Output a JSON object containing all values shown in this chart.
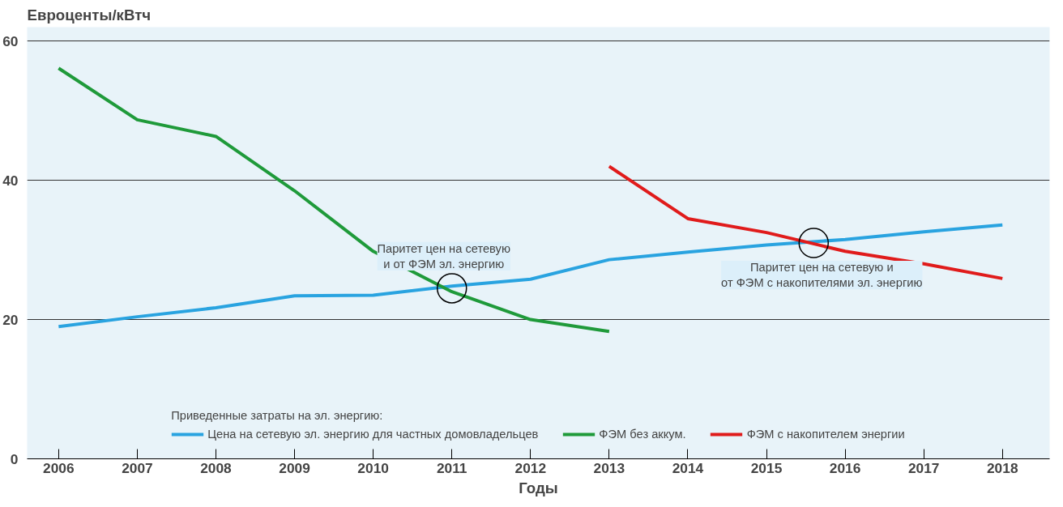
{
  "chart_data": {
    "type": "line",
    "ylabel": "Евроценты/кВтч",
    "xlabel": "Годы",
    "x": [
      2006,
      2007,
      2008,
      2009,
      2010,
      2011,
      2012,
      2013,
      2014,
      2015,
      2016,
      2017,
      2018
    ],
    "series": [
      {
        "name": "Цена на сетевую эл. энергию для частных домовладельцев",
        "color": "#29a3e0",
        "values": [
          19,
          20.4,
          21.7,
          23.4,
          23.5,
          24.8,
          25.8,
          28.6,
          29.7,
          30.7,
          31.5,
          32.6,
          33.6
        ]
      },
      {
        "name": "ФЭМ без аккум.",
        "color": "#1f9a3a",
        "values": [
          56.1,
          48.7,
          46.3,
          38.5,
          29.8,
          24,
          20,
          18.3,
          null,
          null,
          null,
          null,
          null
        ]
      },
      {
        "name": "ФЭМ с накопителем энергии",
        "color": "#e01b1b",
        "values": [
          null,
          null,
          null,
          null,
          null,
          null,
          null,
          42,
          34.5,
          32.5,
          29.8,
          28,
          25.9
        ]
      }
    ],
    "legend_title": "Приведенные затраты на эл. энергию:",
    "annotations": [
      {
        "text": "Паритет цен на сетевую и от ФЭМ эл. энергию",
        "x": 2011,
        "y": 24.5
      },
      {
        "text": "Паритет цен на сетевую и от ФЭМ с накопителями эл. энергию",
        "x": 2015.6,
        "y": 31
      }
    ],
    "xlim": [
      2005.6,
      2018.6
    ],
    "ylim": [
      0,
      62
    ],
    "xticks": [
      2006,
      2007,
      2008,
      2009,
      2010,
      2011,
      2012,
      2013,
      2014,
      2015,
      2016,
      2017,
      2018
    ],
    "yticks": [
      0,
      20,
      40,
      60
    ],
    "grid": "y",
    "legend": "bottom",
    "marker": "none",
    "line_style": "solid"
  }
}
